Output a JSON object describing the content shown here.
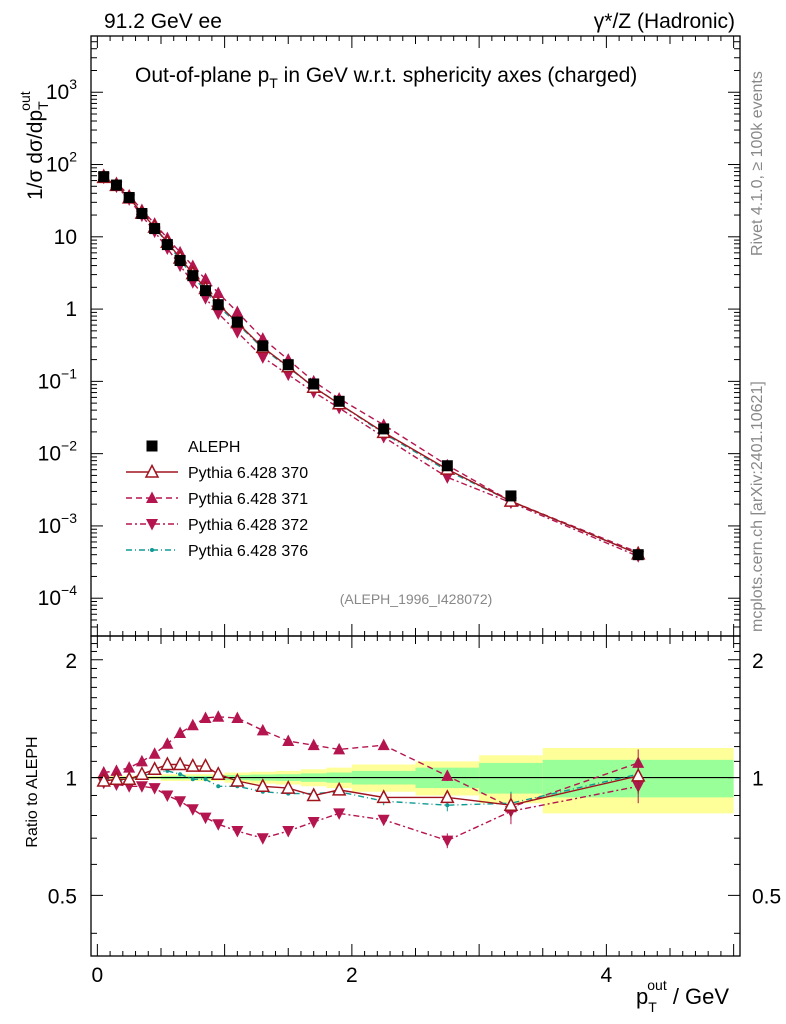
{
  "header": {
    "left": "91.2 GeV ee",
    "right": "γ*/Z (Hadronic)"
  },
  "side_labels": {
    "rivet": "Rivet 4.1.0, ≥ 100k events",
    "mcplots": "mcplots.cern.ch [arXiv:2401.10621]"
  },
  "colors": {
    "data": "#000000",
    "p370": "#a0141e",
    "p371": "#b5154f",
    "p372": "#b5154f",
    "p376": "#109a93",
    "band_inner": "#99ff99",
    "band_outer": "#ffff99"
  },
  "chart_data": [
    {
      "type": "line",
      "title": "Out-of-plane p_T in GeV w.r.t. sphericity axes (charged)",
      "title_main": "Out-of-plane p",
      "title_sub": "T",
      "title_rest": " in GeV w.r.t. sphericity axes (charged)",
      "ylabel": "1/σ  dσ/dp_T^out",
      "yscale": "log",
      "ylim": [
        3e-05,
        6000
      ],
      "xlim": [
        -0.05,
        5.05
      ],
      "y_ticks": [
        {
          "v": 1000,
          "m": "10",
          "e": "3"
        },
        {
          "v": 100,
          "m": "10",
          "e": "2"
        },
        {
          "v": 10,
          "m": "10",
          "e": ""
        },
        {
          "v": 1,
          "m": "1",
          "e": ""
        },
        {
          "v": 0.1,
          "m": "10",
          "e": "−1"
        },
        {
          "v": 0.01,
          "m": "10",
          "e": "−2"
        },
        {
          "v": 0.001,
          "m": "10",
          "e": "−3"
        },
        {
          "v": 0.0001,
          "m": "10",
          "e": "−4"
        }
      ],
      "watermark": "(ALEPH_1996_I428072)",
      "x": [
        0.05,
        0.15,
        0.25,
        0.35,
        0.45,
        0.55,
        0.65,
        0.75,
        0.85,
        0.95,
        1.1,
        1.3,
        1.5,
        1.7,
        1.9,
        2.25,
        2.75,
        3.25,
        4.25
      ],
      "series": [
        {
          "name": "ALEPH",
          "marker": "square",
          "values": [
            68,
            52,
            35,
            21,
            13,
            7.8,
            4.7,
            2.9,
            1.8,
            1.15,
            0.66,
            0.31,
            0.17,
            0.092,
            0.053,
            0.022,
            0.0068,
            0.0026,
            0.0004
          ]
        },
        {
          "name": "Pythia 6.428 370",
          "marker": "triangle-open",
          "values": [
            66.5,
            51.5,
            34.5,
            21.3,
            13.6,
            8.4,
            5.1,
            3.1,
            1.93,
            1.17,
            0.65,
            0.295,
            0.16,
            0.083,
            0.049,
            0.0197,
            0.0061,
            0.0022,
            0.00041
          ]
        },
        {
          "name": "Pythia 6.428 371",
          "marker": "triangle-up",
          "values": [
            71.5,
            55.5,
            37.5,
            23.5,
            15.2,
            9.6,
            6.1,
            3.95,
            2.6,
            1.67,
            0.91,
            0.39,
            0.2,
            0.1,
            0.058,
            0.025,
            0.0069,
            0.0022,
            0.00043
          ]
        },
        {
          "name": "Pythia 6.428 372",
          "marker": "triangle-down",
          "values": [
            65.5,
            49.5,
            33,
            19.6,
            11.8,
            6.9,
            4,
            2.35,
            1.42,
            0.87,
            0.48,
            0.215,
            0.124,
            0.071,
            0.043,
            0.017,
            0.0047,
            0.0021,
            0.00038
          ]
        },
        {
          "name": "Pythia 6.428 376",
          "marker": "dot",
          "values": [
            67,
            51,
            34.5,
            21.4,
            13.5,
            8.1,
            4.8,
            2.85,
            1.78,
            1.09,
            0.63,
            0.285,
            0.155,
            0.084,
            0.049,
            0.019,
            0.0058,
            0.0022,
            0.00041
          ]
        }
      ]
    },
    {
      "type": "line",
      "title": "",
      "ylabel": "Ratio to ALEPH",
      "xlabel": "p_T^out / GeV",
      "xlabel_main": "p",
      "xlabel_sub": "T",
      "xlabel_sup": "out",
      "xlabel_rest": " / GeV",
      "ylim": [
        0.35,
        2.3
      ],
      "xlim": [
        -0.05,
        5.05
      ],
      "x_ticks": [
        "0",
        "2",
        "4"
      ],
      "y_ticks": [
        "0.5",
        "1",
        "2"
      ],
      "bands": [
        {
          "x0": 0.0,
          "x1": 0.5,
          "inner": 0.005,
          "outer": 0.01
        },
        {
          "x0": 0.5,
          "x1": 1.0,
          "inner": 0.01,
          "outer": 0.02
        },
        {
          "x0": 1.0,
          "x1": 1.2,
          "inner": 0.015,
          "outer": 0.03
        },
        {
          "x0": 1.2,
          "x1": 1.4,
          "inner": 0.018,
          "outer": 0.035
        },
        {
          "x0": 1.4,
          "x1": 1.6,
          "inner": 0.02,
          "outer": 0.04
        },
        {
          "x0": 1.6,
          "x1": 1.8,
          "inner": 0.025,
          "outer": 0.05
        },
        {
          "x0": 1.8,
          "x1": 2.0,
          "inner": 0.03,
          "outer": 0.06
        },
        {
          "x0": 2.0,
          "x1": 2.5,
          "inner": 0.04,
          "outer": 0.08
        },
        {
          "x0": 2.5,
          "x1": 3.0,
          "inner": 0.06,
          "outer": 0.1
        },
        {
          "x0": 3.0,
          "x1": 3.5,
          "inner": 0.09,
          "outer": 0.14
        },
        {
          "x0": 3.5,
          "x1": 5.0,
          "inner": 0.11,
          "outer": 0.19
        }
      ],
      "series": [
        {
          "name": "Pythia 6.428 370",
          "values": [
            0.98,
            0.99,
            0.99,
            1.02,
            1.05,
            1.08,
            1.08,
            1.07,
            1.07,
            1.02,
            0.98,
            0.95,
            0.94,
            0.9,
            0.93,
            0.89,
            0.89,
            0.85,
            1.01
          ],
          "errors": [
            0.01,
            0.01,
            0.01,
            0.01,
            0.01,
            0.01,
            0.01,
            0.01,
            0.01,
            0.01,
            0.01,
            0.01,
            0.01,
            0.02,
            0.02,
            0.02,
            0.03,
            0.06,
            0.1
          ]
        },
        {
          "name": "Pythia 6.428 371",
          "values": [
            1.03,
            1.04,
            1.06,
            1.1,
            1.15,
            1.22,
            1.3,
            1.36,
            1.42,
            1.43,
            1.42,
            1.32,
            1.24,
            1.21,
            1.18,
            1.21,
            1.01,
            0.84,
            1.09
          ],
          "errors": [
            0.01,
            0.01,
            0.01,
            0.01,
            0.01,
            0.01,
            0.01,
            0.01,
            0.01,
            0.01,
            0.01,
            0.01,
            0.01,
            0.01,
            0.02,
            0.02,
            0.03,
            0.06,
            0.09
          ]
        },
        {
          "name": "Pythia 6.428 372",
          "values": [
            0.97,
            0.96,
            0.95,
            0.95,
            0.94,
            0.9,
            0.87,
            0.83,
            0.79,
            0.76,
            0.73,
            0.7,
            0.73,
            0.77,
            0.81,
            0.78,
            0.69,
            0.82,
            0.95
          ],
          "errors": [
            0.01,
            0.01,
            0.01,
            0.01,
            0.01,
            0.01,
            0.01,
            0.01,
            0.01,
            0.01,
            0.01,
            0.01,
            0.01,
            0.01,
            0.02,
            0.02,
            0.03,
            0.06,
            0.09
          ]
        },
        {
          "name": "Pythia 6.428 376",
          "values": [
            0.99,
            0.98,
            0.99,
            1.01,
            1.03,
            1.04,
            1.02,
            0.99,
            0.99,
            0.95,
            0.95,
            0.92,
            0.91,
            0.91,
            0.92,
            0.87,
            0.85,
            0.86,
            1.02
          ],
          "errors": [
            0.01,
            0.01,
            0.01,
            0.01,
            0.01,
            0.01,
            0.01,
            0.01,
            0.01,
            0.01,
            0.01,
            0.01,
            0.01,
            0.02,
            0.02,
            0.02,
            0.03,
            0.06,
            0.09
          ]
        }
      ]
    }
  ]
}
